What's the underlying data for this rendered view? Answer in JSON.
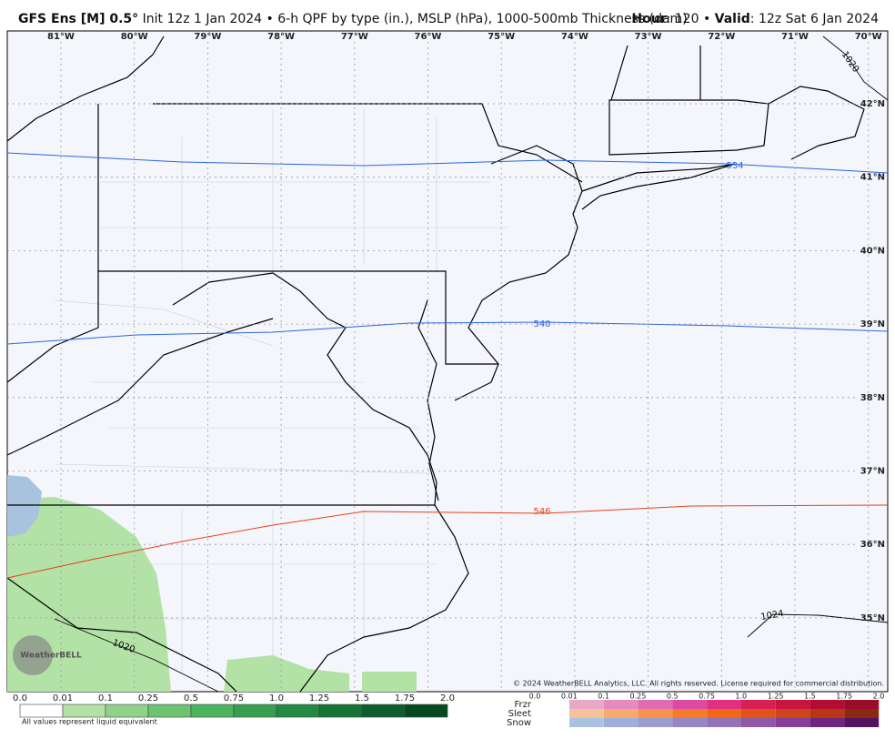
{
  "header": {
    "model": "GFS Ens [M] 0.5°",
    "info": "Init 12z 1 Jan 2024 • 6-h QPF by type (in.), MSLP (hPa), 1000-500mb Thickness (dam)",
    "hour_key": "Hour",
    "hour_value": ": 120 • ",
    "valid_key": "Valid",
    "valid_value": ": 12z Sat 6 Jan 2024"
  },
  "map": {
    "longitudes": [
      "81°W",
      "80°W",
      "79°W",
      "78°W",
      "77°W",
      "76°W",
      "75°W",
      "74°W",
      "73°W",
      "72°W",
      "71°W",
      "70°W"
    ],
    "latitudes": [
      "42°N",
      "41°N",
      "40°N",
      "39°N",
      "38°N",
      "37°N",
      "36°N",
      "35°N"
    ],
    "thickness_labels": [
      "534",
      "540",
      "546"
    ],
    "mslp_labels": [
      "1020",
      "1020",
      "1024"
    ],
    "logo": "WeatherBELL",
    "copyright": "© 2024 WeatherBELL Analytics, LLC. All rights reserved. License required for commercial distribution."
  },
  "legend": {
    "qpf_scale": [
      "0.0",
      "0.01",
      "0.1",
      "0.25",
      "0.5",
      "0.75",
      "1.0",
      "1.25",
      "1.5",
      "1.75",
      "2.0"
    ],
    "note": "All values represent liquid equivalent",
    "ptypes": [
      "Frzr",
      "Sleet",
      "Snow"
    ],
    "ptype_scale": [
      "0.0",
      "0.01",
      "0.1",
      "0.25",
      "0.5",
      "0.75",
      "1.0",
      "1.25",
      "1.5",
      "1.75",
      "2.0"
    ]
  }
}
